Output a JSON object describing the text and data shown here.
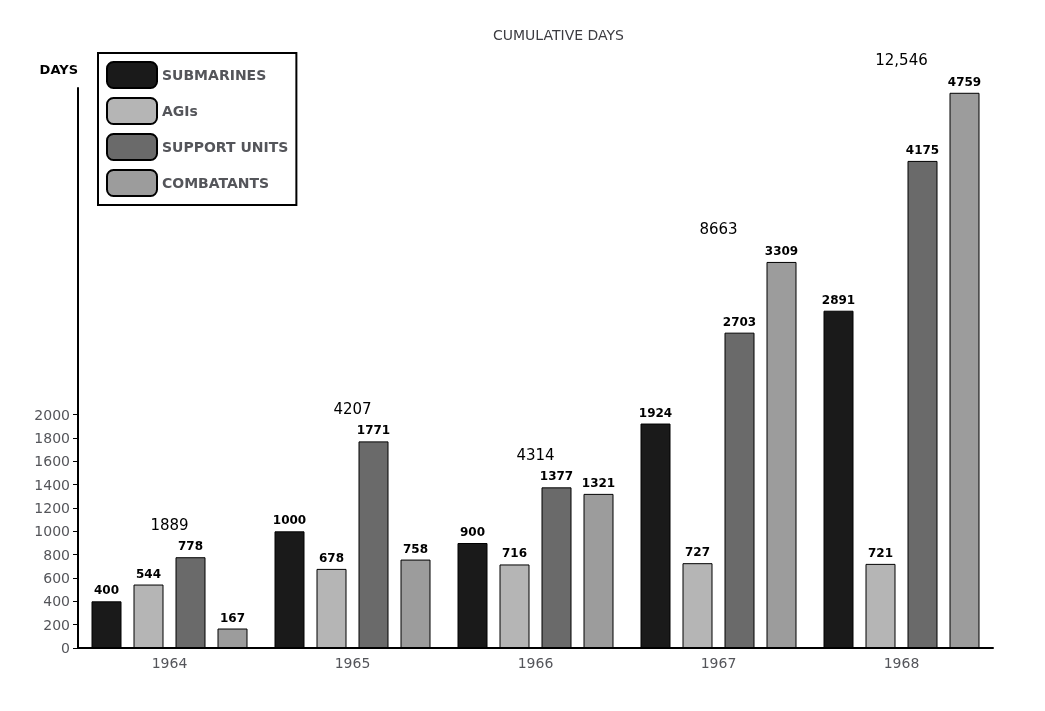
{
  "chart_data": {
    "type": "bar",
    "title": "CUMULATIVE DAYS",
    "ylabel": "DAYS",
    "categories": [
      "1964",
      "1965",
      "1966",
      "1967",
      "1968"
    ],
    "series": [
      {
        "name": "SUBMARINES",
        "color": "#1a1a1a",
        "values": [
          400,
          1000,
          900,
          1924,
          2891
        ]
      },
      {
        "name": "AGIs",
        "color": "#b5b5b5",
        "values": [
          544,
          678,
          716,
          727,
          721
        ]
      },
      {
        "name": "SUPPORT UNITS",
        "color": "#6a6a6a",
        "values": [
          778,
          1771,
          1377,
          2703,
          4175
        ]
      },
      {
        "name": "COMBATANTS",
        "color": "#9c9c9c",
        "values": [
          167,
          758,
          1321,
          3309,
          4759
        ]
      }
    ],
    "totals": [
      "1889",
      "4207",
      "4314",
      "8663",
      "12,546"
    ],
    "ylim": [
      0,
      4800
    ],
    "yticks": [
      0,
      200,
      400,
      600,
      800,
      1000,
      1200,
      1400,
      1600,
      1800,
      2000
    ],
    "data_labels": true,
    "legend": "top left",
    "grid": false
  }
}
